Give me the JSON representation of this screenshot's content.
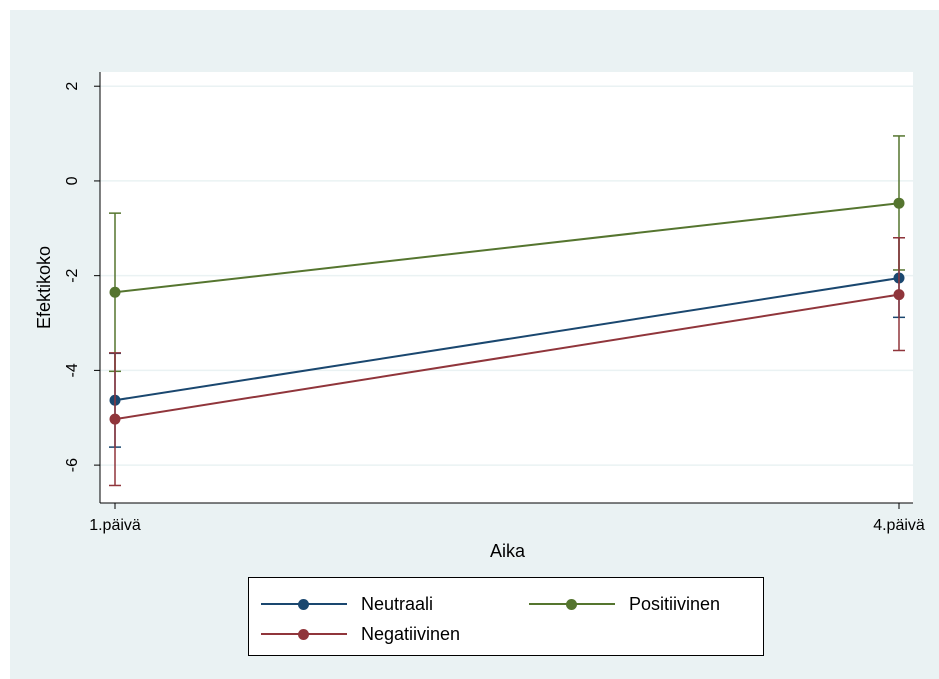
{
  "chart_data": {
    "type": "line",
    "title": "",
    "xlabel": "Aika",
    "ylabel": "Efektikoko",
    "categories": [
      "1.päivä",
      "4.päivä"
    ],
    "ylim": [
      -6.8,
      2.3
    ],
    "yticks": [
      {
        "value": 2,
        "label": "2"
      },
      {
        "value": 0,
        "label": "0"
      },
      {
        "value": -2,
        "label": "-2"
      },
      {
        "value": -4,
        "label": "-4"
      },
      {
        "value": -6,
        "label": "-6"
      }
    ],
    "grid": true,
    "legend_position": "bottom",
    "series": [
      {
        "name": "Neutraali",
        "color": "#1a476f",
        "values": [
          -4.63,
          -2.05
        ],
        "ci_low": [
          -5.62,
          -2.88
        ],
        "ci_high": [
          -3.64,
          -1.2
        ]
      },
      {
        "name": "Positiivinen",
        "color": "#55752f",
        "values": [
          -2.35,
          -0.47
        ],
        "ci_low": [
          -4.02,
          -1.88
        ],
        "ci_high": [
          -0.68,
          0.95
        ]
      },
      {
        "name": "Negatiivinen",
        "color": "#90353b",
        "values": [
          -5.03,
          -2.4
        ],
        "ci_low": [
          -6.43,
          -3.58
        ],
        "ci_high": [
          -3.63,
          -1.2
        ]
      }
    ],
    "colors": {
      "background": "#eaf2f3",
      "plot_background": "#ffffff",
      "grid": "#eaf2f3"
    }
  },
  "legend": {
    "items": [
      "Neutraali",
      "Positiivinen",
      "Negatiivinen"
    ]
  }
}
